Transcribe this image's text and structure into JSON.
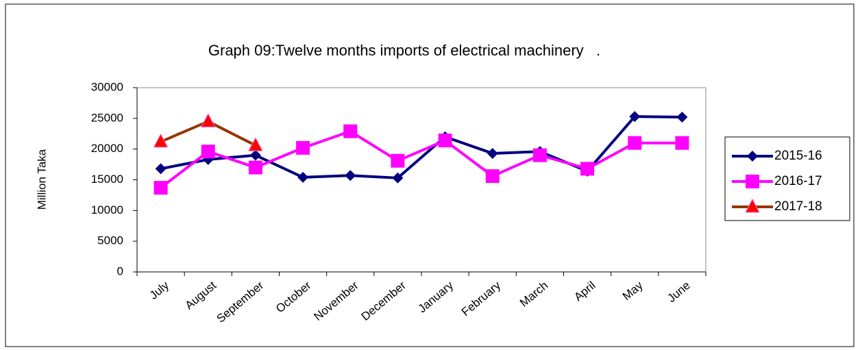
{
  "chart_data": {
    "type": "line",
    "title": "Graph 09:Twelve months imports of electrical machinery   .",
    "y_label": "Million Taka",
    "categories": [
      "July",
      "August",
      "September",
      "October",
      "November",
      "December",
      "January",
      "February",
      "March",
      "April",
      "May",
      "June"
    ],
    "series": [
      {
        "name": "2015-16",
        "color": "#000080",
        "marker": "diamond",
        "values": [
          16800,
          18300,
          19000,
          15400,
          15700,
          15300,
          22000,
          19300,
          19600,
          16400,
          25300,
          25200
        ]
      },
      {
        "name": "2016-17",
        "color": "#ff00ff",
        "marker": "square",
        "values": [
          13700,
          19600,
          17000,
          20200,
          22900,
          18100,
          21400,
          15600,
          19000,
          16800,
          21000,
          21000
        ]
      },
      {
        "name": "2017-18",
        "color": "#993300",
        "marker": "triangle",
        "marker_color": "#ff0000",
        "values": [
          21200,
          24500,
          20600,
          null,
          null,
          null,
          null,
          null,
          null,
          null,
          null,
          null
        ]
      }
    ],
    "ylim": [
      0,
      30000
    ],
    "yticks": [
      0,
      5000,
      10000,
      15000,
      20000,
      25000,
      30000
    ],
    "grid": false,
    "legend": "right"
  }
}
